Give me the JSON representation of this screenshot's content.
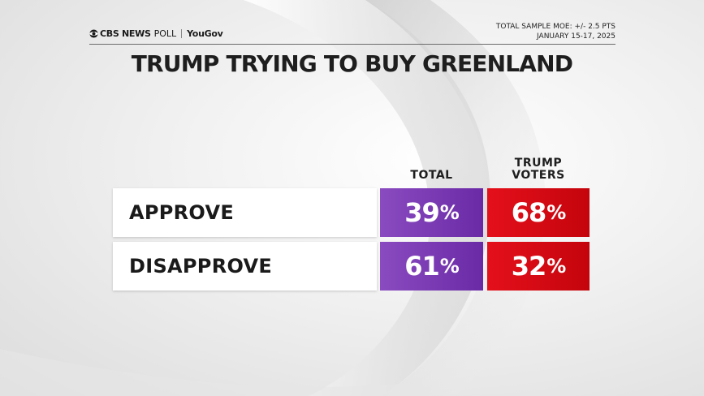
{
  "header": {
    "brand_cbs": "CBS NEWS",
    "brand_poll": "POLL",
    "brand_partner": "YouGov",
    "moe": "TOTAL SAMPLE MOE: +/- 2.5 PTS",
    "dates": "JANUARY 15-17, 2025"
  },
  "colors": {
    "total": "#7a3bb4",
    "trump_voters": "#d40a14"
  },
  "chart_data": {
    "type": "table",
    "title": "TRUMP TRYING TO BUY GREENLAND",
    "columns": [
      "TOTAL",
      "TRUMP VOTERS"
    ],
    "rows": [
      {
        "label": "APPROVE",
        "values": [
          39,
          68
        ]
      },
      {
        "label": "DISAPPROVE",
        "values": [
          61,
          32
        ]
      }
    ],
    "unit": "%"
  }
}
